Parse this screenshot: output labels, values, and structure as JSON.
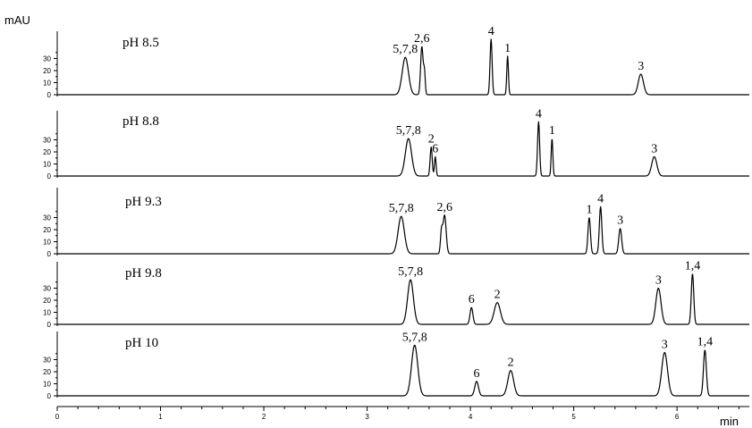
{
  "chart_data": {
    "type": "line",
    "title": "",
    "xlabel": "min",
    "ylabel": "mAU",
    "xlim": [
      0,
      6.7
    ],
    "xticks": [
      0,
      1,
      2,
      3,
      4,
      5,
      6
    ],
    "ylim": [
      0,
      45
    ],
    "yticks": [
      0,
      10,
      20,
      30
    ],
    "panels": [
      {
        "label": "pH 8.5",
        "peaks": [
          {
            "label": "5,7,8",
            "t": 3.37,
            "h": 31,
            "w": 0.03
          },
          {
            "label": "2,6",
            "t": 3.53,
            "h": 40,
            "w": 0.012
          },
          {
            "label": "",
            "t": 3.555,
            "h": 18,
            "w": 0.008
          },
          {
            "label": "4",
            "t": 4.2,
            "h": 46,
            "w": 0.01
          },
          {
            "label": "1",
            "t": 4.36,
            "h": 32,
            "w": 0.008
          },
          {
            "label": "3",
            "t": 5.65,
            "h": 17,
            "w": 0.025
          }
        ]
      },
      {
        "label": "pH 8.8",
        "peaks": [
          {
            "label": "5,7,8",
            "t": 3.4,
            "h": 31,
            "w": 0.03
          },
          {
            "label": "2",
            "t": 3.62,
            "h": 24,
            "w": 0.01
          },
          {
            "label": "6",
            "t": 3.66,
            "h": 16,
            "w": 0.008
          },
          {
            "label": "4",
            "t": 4.66,
            "h": 45,
            "w": 0.01
          },
          {
            "label": "1",
            "t": 4.79,
            "h": 31,
            "w": 0.008
          },
          {
            "label": "3",
            "t": 5.78,
            "h": 16,
            "w": 0.025
          }
        ]
      },
      {
        "label": "pH 9.3",
        "peaks": [
          {
            "label": "5,7,8",
            "t": 3.33,
            "h": 31,
            "w": 0.03
          },
          {
            "label": "2,6",
            "t": 3.75,
            "h": 32,
            "w": 0.015
          },
          {
            "label": "",
            "t": 3.72,
            "h": 18,
            "w": 0.01
          },
          {
            "label": "1",
            "t": 5.15,
            "h": 30,
            "w": 0.012
          },
          {
            "label": "4",
            "t": 5.26,
            "h": 39,
            "w": 0.012
          },
          {
            "label": "3",
            "t": 5.45,
            "h": 21,
            "w": 0.014
          }
        ]
      },
      {
        "label": "pH 9.8",
        "peaks": [
          {
            "label": "5,7,8",
            "t": 3.42,
            "h": 37,
            "w": 0.028
          },
          {
            "label": "6",
            "t": 4.01,
            "h": 14,
            "w": 0.014
          },
          {
            "label": "2",
            "t": 4.26,
            "h": 18,
            "w": 0.03
          },
          {
            "label": "3",
            "t": 5.82,
            "h": 30,
            "w": 0.025
          },
          {
            "label": "1,4",
            "t": 6.15,
            "h": 42,
            "w": 0.012
          }
        ]
      },
      {
        "label": "pH 10",
        "peaks": [
          {
            "label": "5,7,8",
            "t": 3.46,
            "h": 42,
            "w": 0.03
          },
          {
            "label": "6",
            "t": 4.06,
            "h": 12,
            "w": 0.018
          },
          {
            "label": "2",
            "t": 4.39,
            "h": 21,
            "w": 0.028
          },
          {
            "label": "3",
            "t": 5.88,
            "h": 36,
            "w": 0.028
          },
          {
            "label": "1,4",
            "t": 6.27,
            "h": 38,
            "w": 0.014
          }
        ]
      }
    ]
  }
}
